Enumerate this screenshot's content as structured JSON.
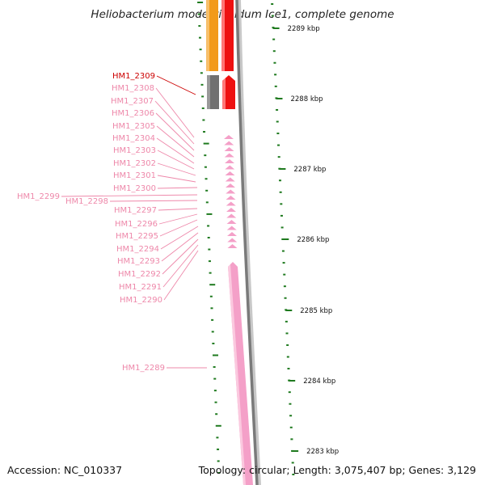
{
  "title": "Heliobacterium modesticaldum Ice1, complete genome",
  "accession_text": "Accession: NC_010337",
  "topology_text": "Topology: circular; Length: 3,075,407 bp; Genes: 3,129",
  "colors": {
    "highlight_label": "#cc0000",
    "gene_label": "#ee88aa",
    "pink_gene": "#f4a0c8",
    "gray_gene": "#707070",
    "red_gene": "#ee1111",
    "orange_gene": "#f29a1a",
    "tick": "#1f7a1f",
    "backbone": "#888888"
  },
  "scale_labels": [
    "2289 kbp",
    "2288 kbp",
    "2287 kbp",
    "2286 kbp",
    "2285 kbp",
    "2284 kbp",
    "2283 kbp"
  ],
  "gene_labels": [
    "HM1_2309",
    "HM1_2308",
    "HM1_2307",
    "HM1_2306",
    "HM1_2305",
    "HM1_2304",
    "HM1_2303",
    "HM1_2302",
    "HM1_2301",
    "HM1_2300",
    "HM1_2299",
    "HM1_2298",
    "HM1_2297",
    "HM1_2296",
    "HM1_2295",
    "HM1_2294",
    "HM1_2293",
    "HM1_2292",
    "HM1_2291",
    "HM1_2290",
    "HM1_2289"
  ],
  "highlighted_gene": "HM1_2309"
}
